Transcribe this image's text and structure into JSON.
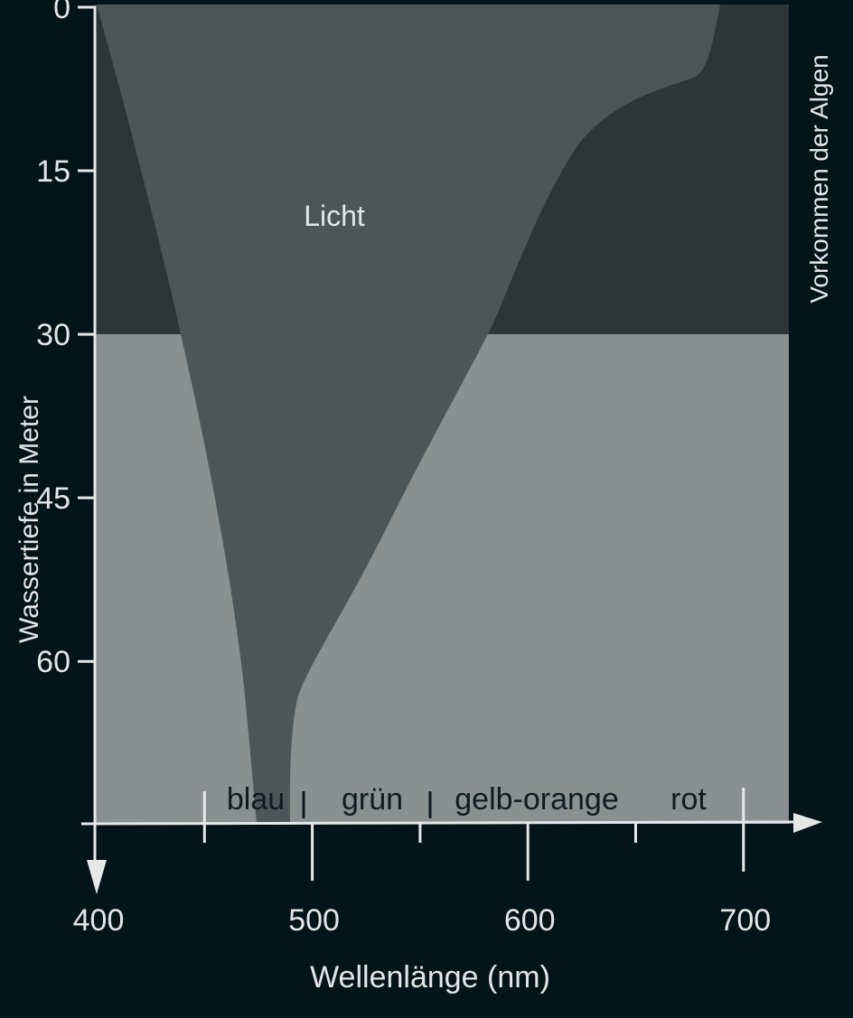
{
  "chart_data": {
    "type": "area",
    "title": "",
    "xlabel": "Wellenlänge (nm)",
    "ylabel": "Wassertiefe in Meter",
    "right_label": "Vorkommen der Algen",
    "region_label": "Licht",
    "xlim": [
      400,
      720
    ],
    "ylim": [
      0,
      75
    ],
    "x_ticks": [
      400,
      500,
      600,
      700
    ],
    "y_ticks": [
      0,
      15,
      30,
      45,
      60
    ],
    "color_bands": [
      {
        "name": "blau",
        "from": 450,
        "to": 495
      },
      {
        "name": "grün",
        "from": 495,
        "to": 555
      },
      {
        "name": "gelb-orange",
        "from": 555,
        "to": 650
      },
      {
        "name": "rot",
        "from": 650,
        "to": 700
      }
    ],
    "algae_boundary_depth": 30,
    "colors": {
      "background": "#03141b",
      "upper_zone": "#2d3537",
      "light": "#4d5557",
      "lower_zone": "#8a8f90",
      "axis": "#e6e8e8"
    }
  }
}
